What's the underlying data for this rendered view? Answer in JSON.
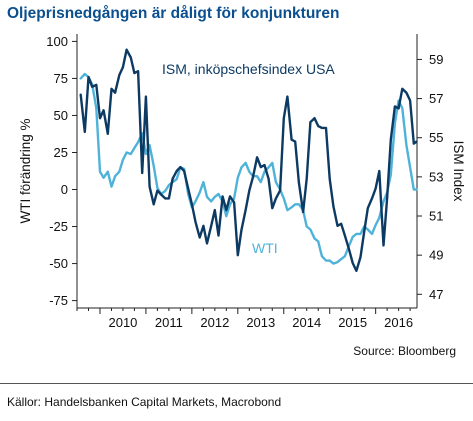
{
  "title": "Oljeprisnedgången är dåligt för konjunkturen",
  "source_note": "Source: Bloomberg",
  "footer": "Källor: Handelsbanken Capital Markets, Macrobond",
  "colors": {
    "ism": "#0d3a63",
    "wti": "#4fb3d9",
    "title": "#0b4f8f"
  },
  "chart_data": {
    "type": "line",
    "x_unit": "year",
    "xlim": [
      2009.5,
      2016.9
    ],
    "x_ticks": [
      "2010",
      "2011",
      "2012",
      "2013",
      "2014",
      "2015",
      "2016"
    ],
    "ylabel_left": "WTI förändring %",
    "ylabel_right": "ISM Index",
    "ylim_left": [
      -80,
      105
    ],
    "yticks_left": [
      100,
      75,
      50,
      25,
      0,
      -25,
      -50,
      -75
    ],
    "ylim_right": [
      46.3,
      60.3
    ],
    "yticks_right": [
      59,
      57,
      55,
      53,
      51,
      49,
      47
    ],
    "grid": false,
    "series": [
      {
        "name": "ISM, inköpschefsindex USA",
        "axis": "right",
        "points": [
          [
            2009.58,
            57.2
          ],
          [
            2009.67,
            55.3
          ],
          [
            2009.75,
            58.1
          ],
          [
            2009.83,
            57.6
          ],
          [
            2009.92,
            57.7
          ],
          [
            2010.0,
            56.0
          ],
          [
            2010.08,
            56.4
          ],
          [
            2010.17,
            55.2
          ],
          [
            2010.25,
            57.5
          ],
          [
            2010.33,
            57.3
          ],
          [
            2010.42,
            58.2
          ],
          [
            2010.5,
            58.6
          ],
          [
            2010.58,
            59.5
          ],
          [
            2010.67,
            59.1
          ],
          [
            2010.75,
            58.3
          ],
          [
            2010.83,
            58.4
          ],
          [
            2010.92,
            53.2
          ],
          [
            2011.0,
            57.1
          ],
          [
            2011.08,
            52.5
          ],
          [
            2011.17,
            51.6
          ],
          [
            2011.25,
            52.3
          ],
          [
            2011.33,
            52.1
          ],
          [
            2011.42,
            51.9
          ],
          [
            2011.5,
            51.9
          ],
          [
            2011.58,
            52.9
          ],
          [
            2011.67,
            53.3
          ],
          [
            2011.75,
            53.5
          ],
          [
            2011.83,
            53.3
          ],
          [
            2011.92,
            52.4
          ],
          [
            2012.0,
            51.6
          ],
          [
            2012.08,
            50.7
          ],
          [
            2012.17,
            49.9
          ],
          [
            2012.25,
            50.5
          ],
          [
            2012.33,
            49.6
          ],
          [
            2012.42,
            50.5
          ],
          [
            2012.5,
            51.3
          ],
          [
            2012.58,
            50.0
          ],
          [
            2012.67,
            52.0
          ],
          [
            2012.75,
            51.3
          ],
          [
            2012.83,
            52.0
          ],
          [
            2012.92,
            51.7
          ],
          [
            2013.0,
            49.0
          ],
          [
            2013.08,
            50.3
          ],
          [
            2013.17,
            51.3
          ],
          [
            2013.25,
            52.3
          ],
          [
            2013.33,
            53.0
          ],
          [
            2013.42,
            54.0
          ],
          [
            2013.5,
            53.5
          ],
          [
            2013.58,
            53.6
          ],
          [
            2013.67,
            52.9
          ],
          [
            2013.75,
            51.4
          ],
          [
            2013.83,
            51.9
          ],
          [
            2013.92,
            52.3
          ],
          [
            2014.0,
            56.0
          ],
          [
            2014.08,
            57.1
          ],
          [
            2014.17,
            54.9
          ],
          [
            2014.25,
            54.8
          ],
          [
            2014.33,
            52.7
          ],
          [
            2014.42,
            51.2
          ],
          [
            2014.5,
            52.9
          ],
          [
            2014.58,
            55.8
          ],
          [
            2014.67,
            56.0
          ],
          [
            2014.75,
            55.6
          ],
          [
            2014.83,
            55.5
          ],
          [
            2014.92,
            55.5
          ],
          [
            2015.0,
            52.9
          ],
          [
            2015.08,
            51.5
          ],
          [
            2015.17,
            50.5
          ],
          [
            2015.25,
            50.6
          ],
          [
            2015.33,
            50.0
          ],
          [
            2015.42,
            49.3
          ],
          [
            2015.5,
            48.6
          ],
          [
            2015.58,
            48.2
          ],
          [
            2015.67,
            48.9
          ],
          [
            2015.75,
            50.2
          ],
          [
            2015.83,
            51.4
          ],
          [
            2015.92,
            51.9
          ],
          [
            2016.0,
            52.4
          ],
          [
            2016.08,
            53.3
          ],
          [
            2016.17,
            49.5
          ],
          [
            2016.25,
            51.9
          ],
          [
            2016.33,
            54.9
          ],
          [
            2016.42,
            56.6
          ],
          [
            2016.5,
            56.5
          ],
          [
            2016.58,
            57.5
          ],
          [
            2016.67,
            57.3
          ],
          [
            2016.75,
            56.9
          ],
          [
            2016.83,
            54.7
          ],
          [
            2016.89,
            54.8
          ]
        ]
      },
      {
        "name": "WTI",
        "axis": "left",
        "points": [
          [
            2009.58,
            75
          ],
          [
            2009.67,
            78
          ],
          [
            2009.75,
            76
          ],
          [
            2009.83,
            71
          ],
          [
            2009.92,
            55
          ],
          [
            2010.0,
            12
          ],
          [
            2010.08,
            8
          ],
          [
            2010.17,
            12
          ],
          [
            2010.25,
            2
          ],
          [
            2010.33,
            9
          ],
          [
            2010.42,
            12
          ],
          [
            2010.5,
            20
          ],
          [
            2010.58,
            25
          ],
          [
            2010.67,
            24
          ],
          [
            2010.75,
            28
          ],
          [
            2010.83,
            32
          ],
          [
            2010.92,
            38
          ],
          [
            2011.0,
            24
          ],
          [
            2011.08,
            30
          ],
          [
            2011.17,
            16
          ],
          [
            2011.25,
            1
          ],
          [
            2011.33,
            -3
          ],
          [
            2011.42,
            -1
          ],
          [
            2011.5,
            3
          ],
          [
            2011.58,
            5
          ],
          [
            2011.67,
            7
          ],
          [
            2011.75,
            15
          ],
          [
            2011.83,
            14
          ],
          [
            2011.92,
            -3
          ],
          [
            2012.0,
            -12
          ],
          [
            2012.08,
            -8
          ],
          [
            2012.17,
            -2
          ],
          [
            2012.25,
            5
          ],
          [
            2012.33,
            -5
          ],
          [
            2012.42,
            -8
          ],
          [
            2012.5,
            -5
          ],
          [
            2012.58,
            -3
          ],
          [
            2012.67,
            -8
          ],
          [
            2012.75,
            -18
          ],
          [
            2012.83,
            -10
          ],
          [
            2012.92,
            -6
          ],
          [
            2013.0,
            8
          ],
          [
            2013.08,
            15
          ],
          [
            2013.17,
            18
          ],
          [
            2013.25,
            12
          ],
          [
            2013.33,
            9
          ],
          [
            2013.42,
            9
          ],
          [
            2013.5,
            5
          ],
          [
            2013.58,
            12
          ],
          [
            2013.67,
            15
          ],
          [
            2013.75,
            18
          ],
          [
            2013.83,
            5
          ],
          [
            2013.92,
            0
          ],
          [
            2014.0,
            -6
          ],
          [
            2014.08,
            -14
          ],
          [
            2014.17,
            -12
          ],
          [
            2014.25,
            -10
          ],
          [
            2014.33,
            -10
          ],
          [
            2014.42,
            -14
          ],
          [
            2014.5,
            -25
          ],
          [
            2014.58,
            -27
          ],
          [
            2014.67,
            -33
          ],
          [
            2014.75,
            -35
          ],
          [
            2014.83,
            -45
          ],
          [
            2014.92,
            -48
          ],
          [
            2015.0,
            -48
          ],
          [
            2015.08,
            -50
          ],
          [
            2015.17,
            -49
          ],
          [
            2015.25,
            -47
          ],
          [
            2015.33,
            -45
          ],
          [
            2015.42,
            -38
          ],
          [
            2015.5,
            -32
          ],
          [
            2015.58,
            -30
          ],
          [
            2015.67,
            -30
          ],
          [
            2015.75,
            -25
          ],
          [
            2015.83,
            -27
          ],
          [
            2015.92,
            -30
          ],
          [
            2016.0,
            -24
          ],
          [
            2016.08,
            -19
          ],
          [
            2016.17,
            -8
          ],
          [
            2016.25,
            -2
          ],
          [
            2016.33,
            10
          ],
          [
            2016.42,
            45
          ],
          [
            2016.5,
            60
          ],
          [
            2016.58,
            55
          ],
          [
            2016.67,
            30
          ],
          [
            2016.75,
            15
          ],
          [
            2016.83,
            0
          ],
          [
            2016.89,
            0
          ]
        ]
      }
    ]
  }
}
